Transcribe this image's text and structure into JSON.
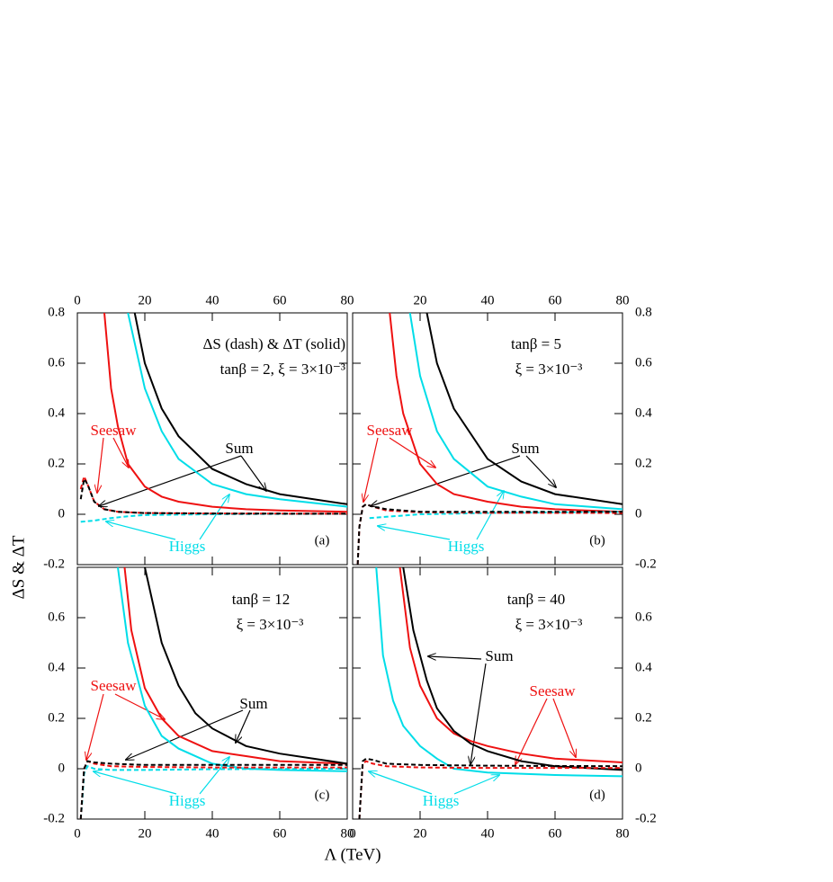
{
  "chart_data": [
    {
      "type": "line",
      "label": "(a)",
      "ylabel": "ΔS & ΔT",
      "xlim": [
        0,
        80
      ],
      "ylim": [
        -0.2,
        0.8
      ],
      "xticks": [
        0,
        20,
        40,
        60,
        80
      ],
      "yticks": [
        -0.2,
        0,
        0.2,
        0.4,
        0.6,
        0.8
      ],
      "xtick_side": "top",
      "ytick_side": "left",
      "annotations": [
        {
          "text": "ΔS (dash) & ΔT (solid)",
          "color": "#000000"
        },
        {
          "text": "tanβ = 2, ξ = 3×10⁻³",
          "color": "#000000"
        },
        {
          "text": "Seesaw",
          "color": "#ee1111"
        },
        {
          "text": "Sum",
          "color": "#000000"
        },
        {
          "text": "Higgs",
          "color": "#00dde8"
        }
      ],
      "series": [
        {
          "color": "#ee1111",
          "dashed": false,
          "x": [
            8,
            10,
            12,
            15,
            20,
            25,
            30,
            40,
            50,
            60,
            80
          ],
          "values": [
            0.8,
            0.5,
            0.35,
            0.2,
            0.11,
            0.07,
            0.05,
            0.03,
            0.02,
            0.015,
            0.01
          ]
        },
        {
          "color": "#00dde8",
          "dashed": false,
          "x": [
            15,
            20,
            25,
            30,
            40,
            50,
            60,
            80
          ],
          "values": [
            0.8,
            0.5,
            0.33,
            0.22,
            0.12,
            0.08,
            0.06,
            0.03
          ]
        },
        {
          "color": "#000000",
          "dashed": false,
          "x": [
            17,
            20,
            25,
            30,
            40,
            50,
            60,
            80
          ],
          "values": [
            0.8,
            0.6,
            0.42,
            0.31,
            0.18,
            0.12,
            0.08,
            0.04
          ]
        },
        {
          "color": "#00dde8",
          "dashed": true,
          "x": [
            1,
            5,
            10,
            15,
            20,
            40,
            80
          ],
          "values": [
            -0.03,
            -0.025,
            -0.015,
            -0.008,
            -0.003,
            0,
            0.002
          ]
        },
        {
          "color": "#ee1111",
          "dashed": true,
          "x": [
            1,
            2,
            3,
            5,
            8,
            12,
            20,
            40,
            80
          ],
          "values": [
            0.1,
            0.15,
            0.12,
            0.05,
            0.02,
            0.01,
            0.005,
            0.003,
            0.002
          ]
        },
        {
          "color": "#000000",
          "dashed": true,
          "x": [
            1,
            2,
            3,
            5,
            8,
            12,
            20,
            40,
            80
          ],
          "values": [
            0.06,
            0.14,
            0.12,
            0.05,
            0.02,
            0.01,
            0.005,
            0.003,
            0.002
          ]
        }
      ]
    },
    {
      "type": "line",
      "label": "(b)",
      "xlim": [
        0,
        80
      ],
      "ylim": [
        -0.2,
        0.8
      ],
      "xticks": [
        20,
        40,
        60,
        80
      ],
      "yticks": [
        -0.2,
        0,
        0.2,
        0.4,
        0.6,
        0.8
      ],
      "xtick_side": "top",
      "ytick_side": "right",
      "annotations": [
        {
          "text": "tanβ = 5",
          "color": "#000000"
        },
        {
          "text": "ξ = 3×10⁻³",
          "color": "#000000"
        },
        {
          "text": "Seesaw",
          "color": "#ee1111"
        },
        {
          "text": "Sum",
          "color": "#000000"
        },
        {
          "text": "Higgs",
          "color": "#00dde8"
        }
      ],
      "series": [
        {
          "color": "#ee1111",
          "dashed": false,
          "x": [
            11,
            13,
            15,
            20,
            25,
            30,
            40,
            50,
            60,
            80
          ],
          "values": [
            0.8,
            0.55,
            0.4,
            0.2,
            0.12,
            0.08,
            0.05,
            0.03,
            0.02,
            0.01
          ]
        },
        {
          "color": "#00dde8",
          "dashed": false,
          "x": [
            17,
            20,
            25,
            30,
            40,
            50,
            60,
            80
          ],
          "values": [
            0.8,
            0.55,
            0.33,
            0.22,
            0.11,
            0.07,
            0.04,
            0.02
          ]
        },
        {
          "color": "#000000",
          "dashed": false,
          "x": [
            22,
            25,
            30,
            40,
            50,
            60,
            80
          ],
          "values": [
            0.8,
            0.6,
            0.42,
            0.22,
            0.13,
            0.08,
            0.04
          ]
        },
        {
          "color": "#00dde8",
          "dashed": true,
          "x": [
            5,
            10,
            20,
            40,
            80
          ],
          "values": [
            -0.015,
            -0.01,
            0,
            0.005,
            0.01
          ]
        },
        {
          "color": "#ee1111",
          "dashed": true,
          "x": [
            1.5,
            2,
            3,
            4,
            6,
            10,
            20,
            40,
            80
          ],
          "values": [
            -0.2,
            -0.05,
            0.03,
            0.04,
            0.03,
            0.015,
            0.008,
            0.006,
            0.005
          ]
        },
        {
          "color": "#000000",
          "dashed": true,
          "x": [
            1.5,
            2,
            3,
            4,
            6,
            10,
            20,
            40,
            80
          ],
          "values": [
            -0.2,
            -0.05,
            0.03,
            0.04,
            0.03,
            0.02,
            0.01,
            0.01,
            0.01
          ]
        }
      ]
    },
    {
      "type": "line",
      "label": "(c)",
      "xlabel": "Λ (TeV)",
      "xlim": [
        0,
        80
      ],
      "ylim": [
        -0.2,
        0.8
      ],
      "xticks": [
        0,
        20,
        40,
        60,
        80
      ],
      "yticks": [
        -0.2,
        0,
        0.2,
        0.4,
        0.6
      ],
      "xtick_side": "bottom",
      "ytick_side": "left",
      "annotations": [
        {
          "text": "tanβ = 12",
          "color": "#000000"
        },
        {
          "text": "ξ = 3×10⁻³",
          "color": "#000000"
        },
        {
          "text": "Seesaw",
          "color": "#ee1111"
        },
        {
          "text": "Sum",
          "color": "#000000"
        },
        {
          "text": "Higgs",
          "color": "#00dde8"
        }
      ],
      "series": [
        {
          "color": "#00dde8",
          "dashed": false,
          "x": [
            12,
            15,
            20,
            25,
            30,
            40,
            50,
            60,
            80
          ],
          "values": [
            0.8,
            0.5,
            0.25,
            0.13,
            0.08,
            0.02,
            0,
            -0.005,
            -0.01
          ]
        },
        {
          "color": "#ee1111",
          "dashed": false,
          "x": [
            14,
            16,
            20,
            25,
            30,
            40,
            50,
            60,
            80
          ],
          "values": [
            0.8,
            0.55,
            0.32,
            0.2,
            0.13,
            0.07,
            0.05,
            0.03,
            0.02
          ]
        },
        {
          "color": "#000000",
          "dashed": false,
          "x": [
            20,
            25,
            30,
            35,
            40,
            50,
            60,
            80
          ],
          "values": [
            0.8,
            0.5,
            0.33,
            0.22,
            0.16,
            0.09,
            0.06,
            0.02
          ]
        },
        {
          "color": "#00dde8",
          "dashed": true,
          "x": [
            1,
            1.5,
            2,
            3,
            5,
            10,
            20,
            40,
            80
          ],
          "values": [
            -0.2,
            -0.12,
            -0.02,
            0.01,
            0,
            -0.005,
            -0.005,
            -0.002,
            0
          ]
        },
        {
          "color": "#ee1111",
          "dashed": true,
          "x": [
            1,
            1.5,
            2,
            3,
            5,
            10,
            20,
            40,
            80
          ],
          "values": [
            -0.2,
            -0.1,
            0,
            0.03,
            0.02,
            0.01,
            0.007,
            0.005,
            0.005
          ]
        },
        {
          "color": "#000000",
          "dashed": true,
          "x": [
            1,
            1.5,
            2,
            3,
            5,
            10,
            20,
            40,
            80
          ],
          "values": [
            -0.2,
            -0.1,
            0,
            0.03,
            0.025,
            0.02,
            0.015,
            0.015,
            0.015
          ]
        }
      ]
    },
    {
      "type": "line",
      "label": "(d)",
      "xlim": [
        0,
        80
      ],
      "ylim": [
        -0.2,
        0.8
      ],
      "xticks": [
        0,
        20,
        40,
        60,
        80
      ],
      "yticks": [
        -0.2,
        0,
        0.2,
        0.4,
        0.6
      ],
      "xtick_side": "bottom",
      "ytick_side": "right",
      "annotations": [
        {
          "text": "tanβ = 40",
          "color": "#000000"
        },
        {
          "text": "ξ = 3×10⁻³",
          "color": "#000000"
        },
        {
          "text": "Sum",
          "color": "#000000"
        },
        {
          "text": "Seesaw",
          "color": "#ee1111"
        },
        {
          "text": "Higgs",
          "color": "#00dde8"
        }
      ],
      "series": [
        {
          "color": "#00dde8",
          "dashed": false,
          "x": [
            7,
            9,
            12,
            15,
            20,
            25,
            30,
            40,
            60,
            80
          ],
          "values": [
            0.8,
            0.45,
            0.27,
            0.17,
            0.09,
            0.04,
            0,
            -0.015,
            -0.025,
            -0.03
          ]
        },
        {
          "color": "#ee1111",
          "dashed": false,
          "x": [
            14,
            17,
            20,
            25,
            30,
            35,
            40,
            50,
            60,
            80
          ],
          "values": [
            0.8,
            0.48,
            0.33,
            0.2,
            0.14,
            0.11,
            0.09,
            0.06,
            0.04,
            0.025
          ]
        },
        {
          "color": "#000000",
          "dashed": false,
          "x": [
            15,
            18,
            22,
            25,
            30,
            35,
            40,
            50,
            60,
            80
          ],
          "values": [
            0.8,
            0.55,
            0.35,
            0.24,
            0.15,
            0.1,
            0.07,
            0.03,
            0.01,
            -0.005
          ]
        },
        {
          "color": "#ee1111",
          "dashed": true,
          "x": [
            2,
            3,
            4,
            6,
            10,
            20,
            40,
            80
          ],
          "values": [
            -0.2,
            0.02,
            0.03,
            0.02,
            0.01,
            0.005,
            0.003,
            0.003
          ]
        },
        {
          "color": "#000000",
          "dashed": true,
          "x": [
            2,
            3,
            4,
            6,
            10,
            20,
            40,
            80
          ],
          "values": [
            -0.2,
            0.03,
            0.04,
            0.035,
            0.02,
            0.015,
            0.012,
            0.01
          ]
        }
      ]
    }
  ]
}
